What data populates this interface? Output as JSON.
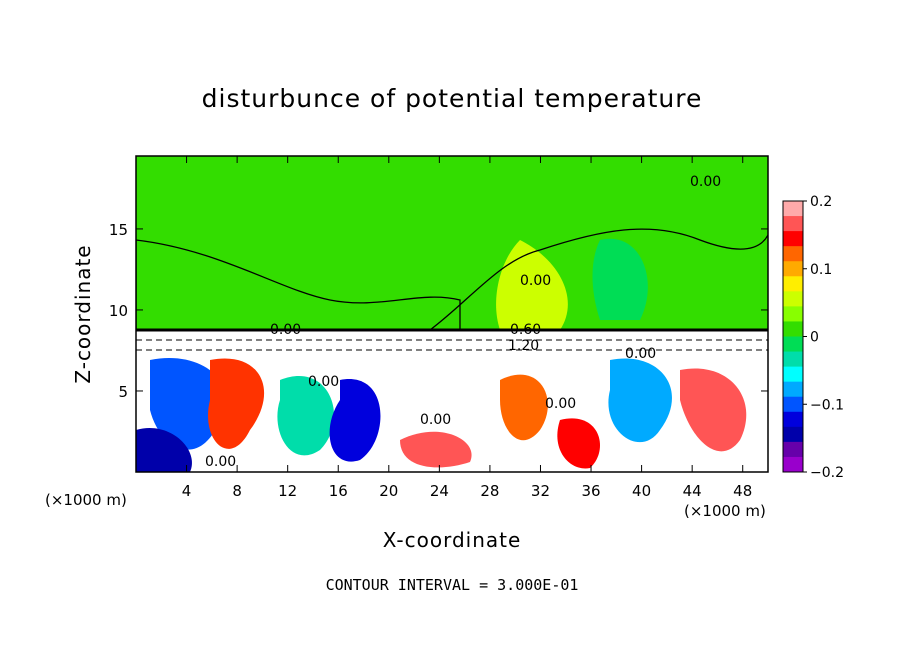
{
  "chart_data": {
    "type": "heatmap",
    "title": "disturbunce of potential temperature",
    "xlabel": "X-coordinate",
    "ylabel": "Z-coordinate",
    "x_unit": "(×1000 m)",
    "x_unit_right": "(×1000 m)",
    "x_ticks": [
      4,
      8,
      12,
      16,
      20,
      24,
      28,
      32,
      36,
      40,
      44,
      48
    ],
    "y_ticks": [
      5,
      10,
      15
    ],
    "xlim": [
      0,
      50
    ],
    "ylim": [
      0,
      19.5
    ],
    "colorbar": {
      "ticks": [
        0.2,
        0.1,
        0,
        -0.1,
        -0.2
      ],
      "tick_labels": [
        "0.2",
        "0.1",
        "0",
        "−0.1",
        "−0.2"
      ],
      "range": [
        -0.2,
        0.2
      ],
      "colors": [
        "#ffaaaa",
        "#ff5555",
        "#ff0000",
        "#ff6600",
        "#ffaa00",
        "#ffee00",
        "#ccff00",
        "#88ff00",
        "#33dd00",
        "#00dd55",
        "#00ddaa",
        "#00ffff",
        "#00aaff",
        "#0055ff",
        "#0000dd",
        "#0000aa",
        "#6600aa",
        "#9900cc"
      ]
    },
    "contour_labels": [
      "0.00",
      "0.00",
      "0.60",
      "1.20",
      "0.00",
      "0.00",
      "0.00",
      "0.00",
      "0.00",
      "0.00"
    ],
    "note": "CONTOUR INTERVAL = 3.000E-01"
  }
}
